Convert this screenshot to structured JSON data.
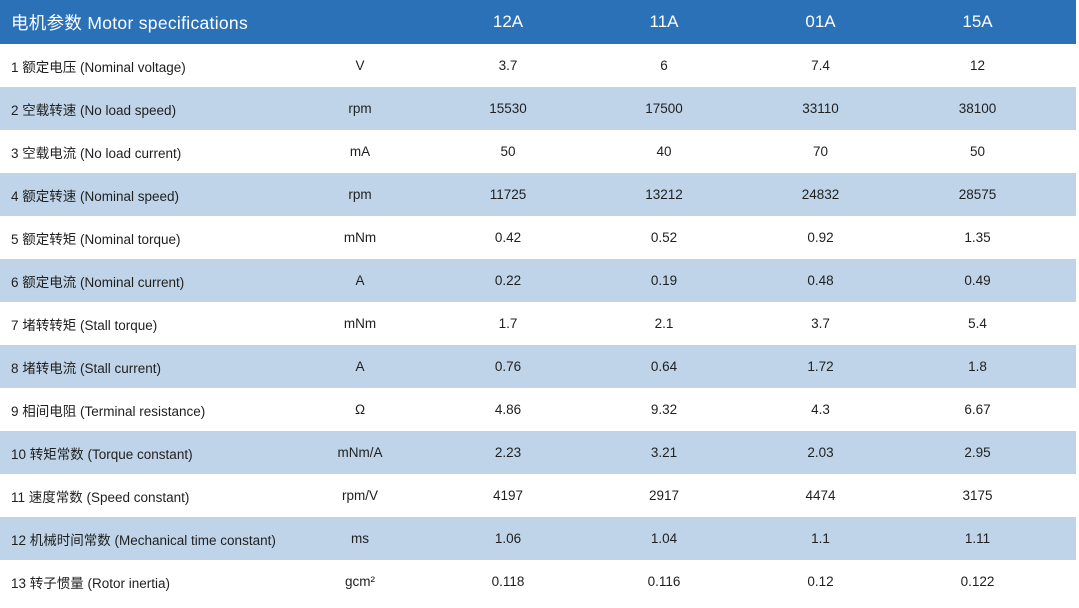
{
  "colors": {
    "header_bg": "#2B71B8",
    "header_text": "#FFFFFF",
    "row_bg": "#FFFFFF",
    "row_alt_bg": "#BFD4E9",
    "body_text": "#1F1F1F"
  },
  "chart_data": {
    "type": "table",
    "title": "电机参数 Motor specifications",
    "model_columns": [
      "12A",
      "11A",
      "01A",
      "15A"
    ],
    "rows": [
      {
        "label": "1 额定电压 (Nominal voltage)",
        "unit": "V",
        "values": [
          "3.7",
          "6",
          "7.4",
          "12"
        ]
      },
      {
        "label": "2 空载转速 (No load speed)",
        "unit": "rpm",
        "values": [
          "15530",
          "17500",
          "33110",
          "38100"
        ]
      },
      {
        "label": "3 空载电流 (No load current)",
        "unit": "mA",
        "values": [
          "50",
          "40",
          "70",
          "50"
        ]
      },
      {
        "label": "4 额定转速 (Nominal speed)",
        "unit": "rpm",
        "values": [
          "11725",
          "13212",
          "24832",
          "28575"
        ]
      },
      {
        "label": "5 额定转矩 (Nominal torque)",
        "unit": "mNm",
        "values": [
          "0.42",
          "0.52",
          "0.92",
          "1.35"
        ]
      },
      {
        "label": "6 额定电流 (Nominal current)",
        "unit": "A",
        "values": [
          "0.22",
          "0.19",
          "0.48",
          "0.49"
        ]
      },
      {
        "label": "7 堵转转矩 (Stall torque)",
        "unit": "mNm",
        "values": [
          "1.7",
          "2.1",
          "3.7",
          "5.4"
        ]
      },
      {
        "label": "8 堵转电流 (Stall current)",
        "unit": "A",
        "values": [
          "0.76",
          "0.64",
          "1.72",
          "1.8"
        ]
      },
      {
        "label": "9 相间电阻 (Terminal resistance)",
        "unit": "Ω",
        "values": [
          "4.86",
          "9.32",
          "4.3",
          "6.67"
        ]
      },
      {
        "label": "10 转矩常数 (Torque constant)",
        "unit": "mNm/A",
        "values": [
          "2.23",
          "3.21",
          "2.03",
          "2.95"
        ]
      },
      {
        "label": "11 速度常数 (Speed constant)",
        "unit": "rpm/V",
        "values": [
          "4197",
          "2917",
          "4474",
          "3175"
        ]
      },
      {
        "label": "12 机械时间常数 (Mechanical time constant)",
        "unit": "ms",
        "values": [
          "1.06",
          "1.04",
          "1.1",
          "1.11"
        ]
      },
      {
        "label": "13 转子惯量 (Rotor inertia)",
        "unit": "gcm²",
        "values": [
          "0.118",
          "0.116",
          "0.12",
          "0.122"
        ]
      }
    ]
  }
}
